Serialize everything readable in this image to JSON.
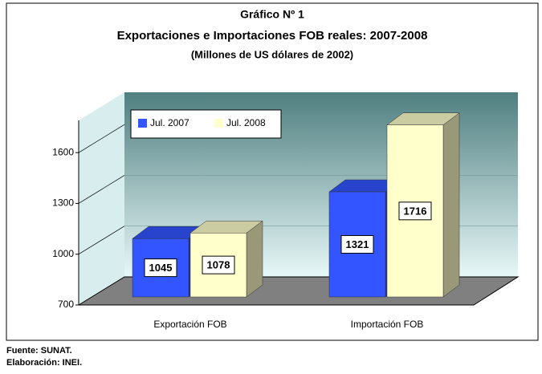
{
  "chart_data": {
    "type": "bar3d",
    "title": "Gráfico Nº 1",
    "subtitle": "Exportaciones e Importaciones FOB reales: 2007-2008",
    "unit_label": "(Millones de US dólares de 2002)",
    "categories": [
      "Exportación FOB",
      "Importación FOB"
    ],
    "series": [
      {
        "name": "Jul. 2007",
        "color": "#3355ff",
        "values": [
          1045,
          1321
        ]
      },
      {
        "name": "Jul. 2008",
        "color": "#ffffcc",
        "values": [
          1078,
          1716
        ]
      }
    ],
    "ylim": [
      700,
      1800
    ],
    "yticks": [
      700,
      1000,
      1300,
      1600
    ],
    "grid": true,
    "legend": "top-left",
    "source": "Fuente: SUNAT.",
    "credit": "Elaboración: INEI."
  }
}
